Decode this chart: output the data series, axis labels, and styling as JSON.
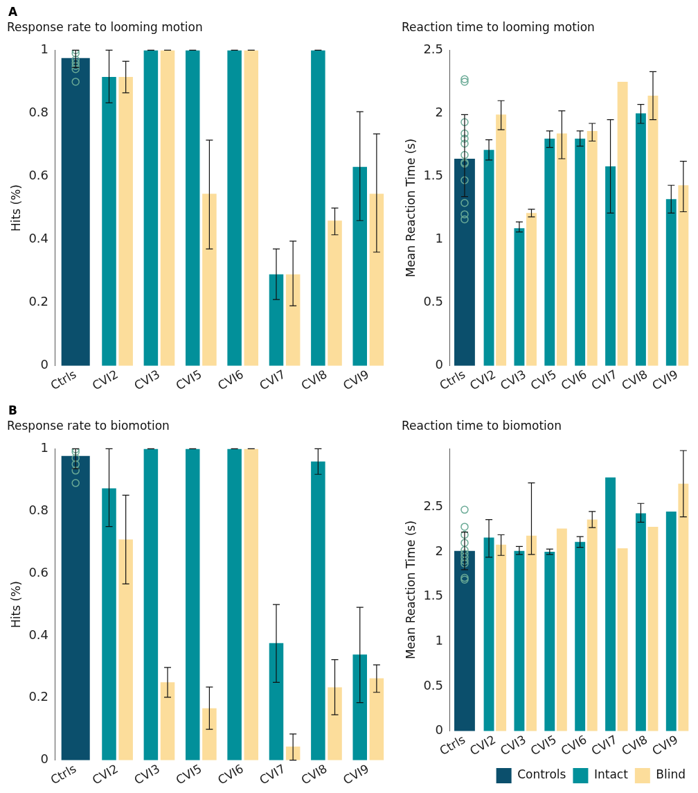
{
  "chart_data": [
    {
      "type": "bar",
      "title": "Response rate to looming motion",
      "ylabel": "Hits (%)",
      "annotations": [
        "A"
      ],
      "grid": false,
      "legend": false,
      "categories": [
        "Ctrls",
        "CVI2",
        "CVI3",
        "CVI5",
        "CVI6",
        "CVI7",
        "CVI8",
        "CVI9"
      ],
      "ylim": [
        0,
        1
      ],
      "yticks": [
        0,
        0.2,
        0.4,
        0.6,
        0.8,
        1
      ],
      "series": [
        {
          "color": "#0b4f6c",
          "values": [
            0.975,
            null,
            null,
            null,
            null,
            null,
            null,
            null
          ],
          "errors": [
            [
              0.945,
              1.0
            ],
            null,
            null,
            null,
            null,
            null,
            null,
            null
          ]
        },
        {
          "color": "#02909a",
          "values": [
            null,
            0.915,
            1,
            1,
            1,
            0.29,
            1,
            0.63
          ],
          "errors": [
            null,
            [
              0.833,
              1.0
            ],
            [
              1,
              1
            ],
            [
              1,
              1
            ],
            [
              1,
              1
            ],
            [
              0.21,
              0.37
            ],
            [
              1,
              1
            ],
            [
              0.46,
              0.805
            ]
          ]
        },
        {
          "color": "#fcdd9b",
          "values": [
            null,
            0.915,
            1,
            0.545,
            1,
            0.29,
            0.46,
            0.545
          ],
          "errors": [
            null,
            [
              0.865,
              0.965
            ],
            [
              1,
              1
            ],
            [
              0.37,
              0.715
            ],
            [
              1,
              1
            ],
            [
              0.19,
              0.395
            ],
            [
              0.415,
              0.5
            ],
            [
              0.36,
              0.735
            ]
          ]
        },
        {
          "type": "scatter",
          "marker": "circle",
          "color": "#6aaa96",
          "x": [
            "Ctrls",
            "Ctrls",
            "Ctrls",
            "Ctrls",
            "Ctrls",
            "Ctrls",
            "Ctrls"
          ],
          "values": [
            1.0,
            0.99,
            0.97,
            0.96,
            0.95,
            0.94,
            0.9
          ]
        }
      ]
    },
    {
      "type": "bar",
      "title": "Reaction time to looming motion",
      "ylabel": "Mean Reaction Time (s)",
      "grid": false,
      "legend": false,
      "categories": [
        "Ctrls",
        "CVI2",
        "CVI3",
        "CVI5",
        "CVI6",
        "CVI7",
        "CVI8",
        "CVI9"
      ],
      "ylim": [
        0,
        2.5
      ],
      "yticks": [
        0,
        0.5,
        1,
        1.5,
        2,
        2.5
      ],
      "series": [
        {
          "color": "#0b4f6c",
          "values": [
            1.64,
            null,
            null,
            null,
            null,
            null,
            null,
            null
          ],
          "errors": [
            [
              1.34,
              1.99
            ],
            null,
            null,
            null,
            null,
            null,
            null,
            null
          ]
        },
        {
          "color": "#02909a",
          "values": [
            null,
            1.71,
            1.09,
            1.8,
            1.8,
            1.58,
            2.0,
            1.32
          ],
          "errors": [
            null,
            [
              1.63,
              1.79
            ],
            [
              1.06,
              1.14
            ],
            [
              1.73,
              1.86
            ],
            [
              1.74,
              1.86
            ],
            [
              1.21,
              1.95
            ],
            [
              1.92,
              2.07
            ],
            [
              1.21,
              1.43
            ]
          ]
        },
        {
          "color": "#fcdd9b",
          "values": [
            null,
            1.99,
            1.21,
            1.84,
            1.86,
            2.25,
            2.14,
            1.43
          ],
          "errors": [
            null,
            [
              1.87,
              2.1
            ],
            [
              1.18,
              1.24
            ],
            [
              1.64,
              2.02
            ],
            [
              1.78,
              1.92
            ],
            null,
            [
              1.95,
              2.33
            ],
            [
              1.22,
              1.62
            ]
          ]
        },
        {
          "type": "scatter",
          "marker": "circle",
          "color": "#6aaa96",
          "x": [
            "Ctrls",
            "Ctrls",
            "Ctrls",
            "Ctrls",
            "Ctrls",
            "Ctrls",
            "Ctrls",
            "Ctrls",
            "Ctrls",
            "Ctrls",
            "Ctrls",
            "Ctrls",
            "Ctrls"
          ],
          "values": [
            2.27,
            2.25,
            1.93,
            1.84,
            1.8,
            1.76,
            1.67,
            1.61,
            1.6,
            1.47,
            1.29,
            1.2,
            1.16
          ]
        }
      ]
    },
    {
      "type": "bar",
      "title": "Response rate to biomotion",
      "ylabel": "Hits (%)",
      "annotations": [
        "B"
      ],
      "grid": false,
      "legend": false,
      "categories": [
        "Ctrls",
        "CVI2",
        "CVI3",
        "CVI5",
        "CVI6",
        "CVI7",
        "CVI8",
        "CVI9"
      ],
      "ylim": [
        0,
        1
      ],
      "yticks": [
        0,
        0.2,
        0.4,
        0.6,
        0.8,
        1
      ],
      "series": [
        {
          "color": "#0b4f6c",
          "values": [
            0.977,
            null,
            null,
            null,
            null,
            null,
            null,
            null
          ],
          "errors": [
            [
              0.936,
              1.0
            ],
            null,
            null,
            null,
            null,
            null,
            null,
            null
          ]
        },
        {
          "color": "#02909a",
          "values": [
            null,
            0.873,
            1,
            1,
            1,
            0.376,
            0.959,
            0.339
          ],
          "errors": [
            null,
            [
              0.75,
              1.0
            ],
            [
              1,
              1
            ],
            [
              1,
              1
            ],
            [
              1,
              1
            ],
            [
              0.25,
              0.5
            ],
            [
              0.918,
              1.0
            ],
            [
              0.185,
              0.491
            ]
          ]
        },
        {
          "color": "#fcdd9b",
          "values": [
            null,
            0.709,
            0.25,
            0.167,
            1,
            0.044,
            0.234,
            0.263
          ],
          "errors": [
            null,
            [
              0.566,
              0.851
            ],
            [
              0.202,
              0.298
            ],
            [
              0.099,
              0.235
            ],
            [
              1,
              1
            ],
            [
              0.0,
              0.084
            ],
            [
              0.146,
              0.323
            ],
            [
              0.218,
              0.306
            ]
          ]
        },
        {
          "type": "scatter",
          "marker": "circle",
          "color": "#6aaa96",
          "x": [
            "Ctrls",
            "Ctrls",
            "Ctrls",
            "Ctrls",
            "Ctrls",
            "Ctrls"
          ],
          "values": [
            0.998,
            0.99,
            0.97,
            0.95,
            0.93,
            0.89
          ]
        }
      ]
    },
    {
      "type": "bar",
      "title": "Reaction time to biomotion",
      "ylabel": "Mean Reaction Time (s)",
      "grid": false,
      "legend": "bottom right",
      "categories": [
        "Ctrls",
        "CVI2",
        "CVI3",
        "CVI5",
        "CVI6",
        "CVI7",
        "CVI8",
        "CVI9"
      ],
      "ylim": [
        0,
        3.15
      ],
      "yticks": [
        0,
        0.5,
        1,
        1.5,
        2,
        2.5
      ],
      "series": [
        {
          "name": "Controls",
          "color": "#0b4f6c",
          "values": [
            2.01,
            null,
            null,
            null,
            null,
            null,
            null,
            null
          ],
          "errors": [
            [
              1.8,
              2.22
            ],
            null,
            null,
            null,
            null,
            null,
            null,
            null
          ]
        },
        {
          "name": "Intact",
          "color": "#02909a",
          "values": [
            null,
            2.16,
            2.01,
            2.0,
            2.11,
            2.83,
            2.43,
            2.45
          ],
          "errors": [
            null,
            [
              1.94,
              2.36
            ],
            [
              1.97,
              2.06
            ],
            [
              1.97,
              2.03
            ],
            [
              2.05,
              2.17
            ],
            null,
            [
              2.33,
              2.54
            ],
            null
          ]
        },
        {
          "name": "Blind",
          "color": "#fcdd9b",
          "values": [
            null,
            2.08,
            2.18,
            2.26,
            2.36,
            2.04,
            2.28,
            2.76
          ],
          "errors": [
            null,
            [
              1.96,
              2.19
            ],
            [
              1.97,
              2.77
            ],
            null,
            [
              2.27,
              2.45
            ],
            null,
            null,
            [
              2.39,
              3.13
            ]
          ]
        },
        {
          "type": "scatter",
          "marker": "circle",
          "color": "#6aaa96",
          "x": [
            "Ctrls",
            "Ctrls",
            "Ctrls",
            "Ctrls",
            "Ctrls",
            "Ctrls",
            "Ctrls",
            "Ctrls",
            "Ctrls",
            "Ctrls",
            "Ctrls"
          ],
          "values": [
            2.47,
            2.28,
            2.19,
            2.1,
            2.02,
            1.98,
            1.94,
            1.9,
            1.87,
            1.71,
            1.69
          ]
        }
      ]
    }
  ]
}
